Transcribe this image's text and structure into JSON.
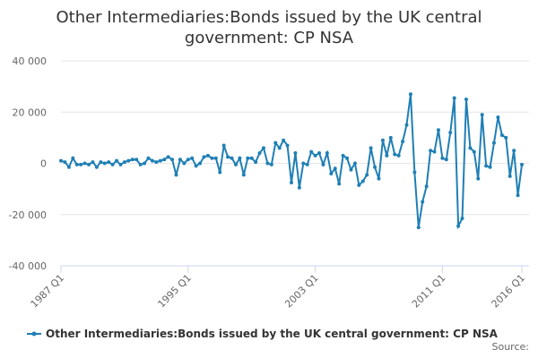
{
  "chart_data": {
    "type": "line",
    "title": "Other Intermediaries:Bonds issued by the UK central government: CP NSA",
    "source": "Source:",
    "categories": [
      "1987 Q1",
      null,
      null,
      null,
      null,
      null,
      null,
      null,
      null,
      null,
      null,
      null,
      null,
      null,
      null,
      null,
      null,
      null,
      null,
      null,
      null,
      null,
      null,
      null,
      null,
      null,
      null,
      null,
      null,
      null,
      null,
      null,
      "1995 Q1",
      null,
      null,
      null,
      null,
      null,
      null,
      null,
      null,
      null,
      null,
      null,
      null,
      null,
      null,
      null,
      null,
      null,
      null,
      null,
      null,
      null,
      null,
      null,
      null,
      null,
      null,
      null,
      null,
      null,
      null,
      null,
      "2003 Q1",
      null,
      null,
      null,
      null,
      null,
      null,
      null,
      null,
      null,
      null,
      null,
      null,
      null,
      null,
      null,
      null,
      null,
      null,
      null,
      null,
      null,
      null,
      null,
      null,
      null,
      null,
      null,
      null,
      null,
      null,
      null,
      "2011 Q1",
      null,
      null,
      null,
      null,
      null,
      null,
      null,
      null,
      null,
      null,
      null,
      null,
      null,
      null,
      null,
      null,
      null,
      null,
      null,
      "2016 Q1"
    ],
    "series": [
      {
        "name": "Other Intermediaries:Bonds issued by the UK central government: CP NSA",
        "color": "#1f7fb5",
        "values": [
          1000,
          500,
          -1500,
          2000,
          -500,
          -500,
          0,
          -500,
          500,
          -1500,
          500,
          0,
          500,
          -500,
          1000,
          -500,
          500,
          1000,
          1500,
          1500,
          -500,
          0,
          2000,
          1000,
          500,
          1000,
          1500,
          2500,
          1500,
          -4500,
          1500,
          0,
          1500,
          2000,
          -1000,
          0,
          2500,
          3000,
          2000,
          2000,
          -3500,
          7000,
          2500,
          2000,
          -500,
          2000,
          -4500,
          2000,
          2000,
          500,
          4000,
          6000,
          0,
          -500,
          8000,
          6000,
          9000,
          7000,
          -7500,
          4000,
          -9500,
          0,
          -500,
          4500,
          3000,
          4000,
          -500,
          4000,
          -4000,
          -2000,
          -8000,
          3000,
          2000,
          -2500,
          0,
          -8500,
          -7000,
          -4500,
          6000,
          -1500,
          -6000,
          9000,
          3000,
          10000,
          3500,
          3000,
          8500,
          15000,
          27000,
          -3500,
          -25000,
          -15000,
          -9000,
          5000,
          4500,
          13000,
          2000,
          1500,
          12000,
          25500,
          -24500,
          -21500,
          25000,
          6000,
          4500,
          -6000,
          19000,
          -1000,
          -1500,
          8000,
          18000,
          11000,
          10000,
          -5000,
          5000,
          -12500,
          -500
        ]
      }
    ],
    "ylim": [
      -40000,
      40000
    ],
    "yticks": [
      {
        "value": -40000,
        "label": "-40 000"
      },
      {
        "value": -20000,
        "label": "-20 000"
      },
      0,
      {
        "value": 20000,
        "label": "20 000"
      },
      {
        "value": 40000,
        "label": "40 000"
      }
    ],
    "grid": true
  }
}
